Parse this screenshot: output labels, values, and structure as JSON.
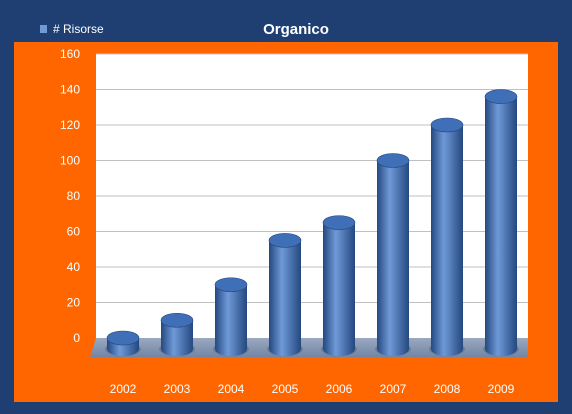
{
  "chart_data": {
    "type": "bar",
    "title": "Organico",
    "legend": {
      "label": "# Risorse",
      "position": "top-left"
    },
    "categories": [
      "2002",
      "2003",
      "2004",
      "2005",
      "2006",
      "2007",
      "2008",
      "2009"
    ],
    "series": [
      {
        "name": "# Risorse",
        "values": [
          0,
          10,
          30,
          55,
          65,
          100,
          120,
          136
        ]
      }
    ],
    "ylim": [
      0,
      160
    ],
    "yticks": [
      0,
      20,
      40,
      60,
      80,
      100,
      120,
      140,
      160
    ],
    "xlabel": "",
    "ylabel": "",
    "grid": true,
    "colors": {
      "frame": "#1f3f72",
      "plot_background": "#ff6600",
      "plot_area": "#ffffff",
      "floor": "#8596b0",
      "bar": "#3f6fb6",
      "bar_dark": "#24487f",
      "bar_light": "#6f9ad8",
      "text": "#ffffff",
      "grid": "#c0c0c0"
    }
  }
}
